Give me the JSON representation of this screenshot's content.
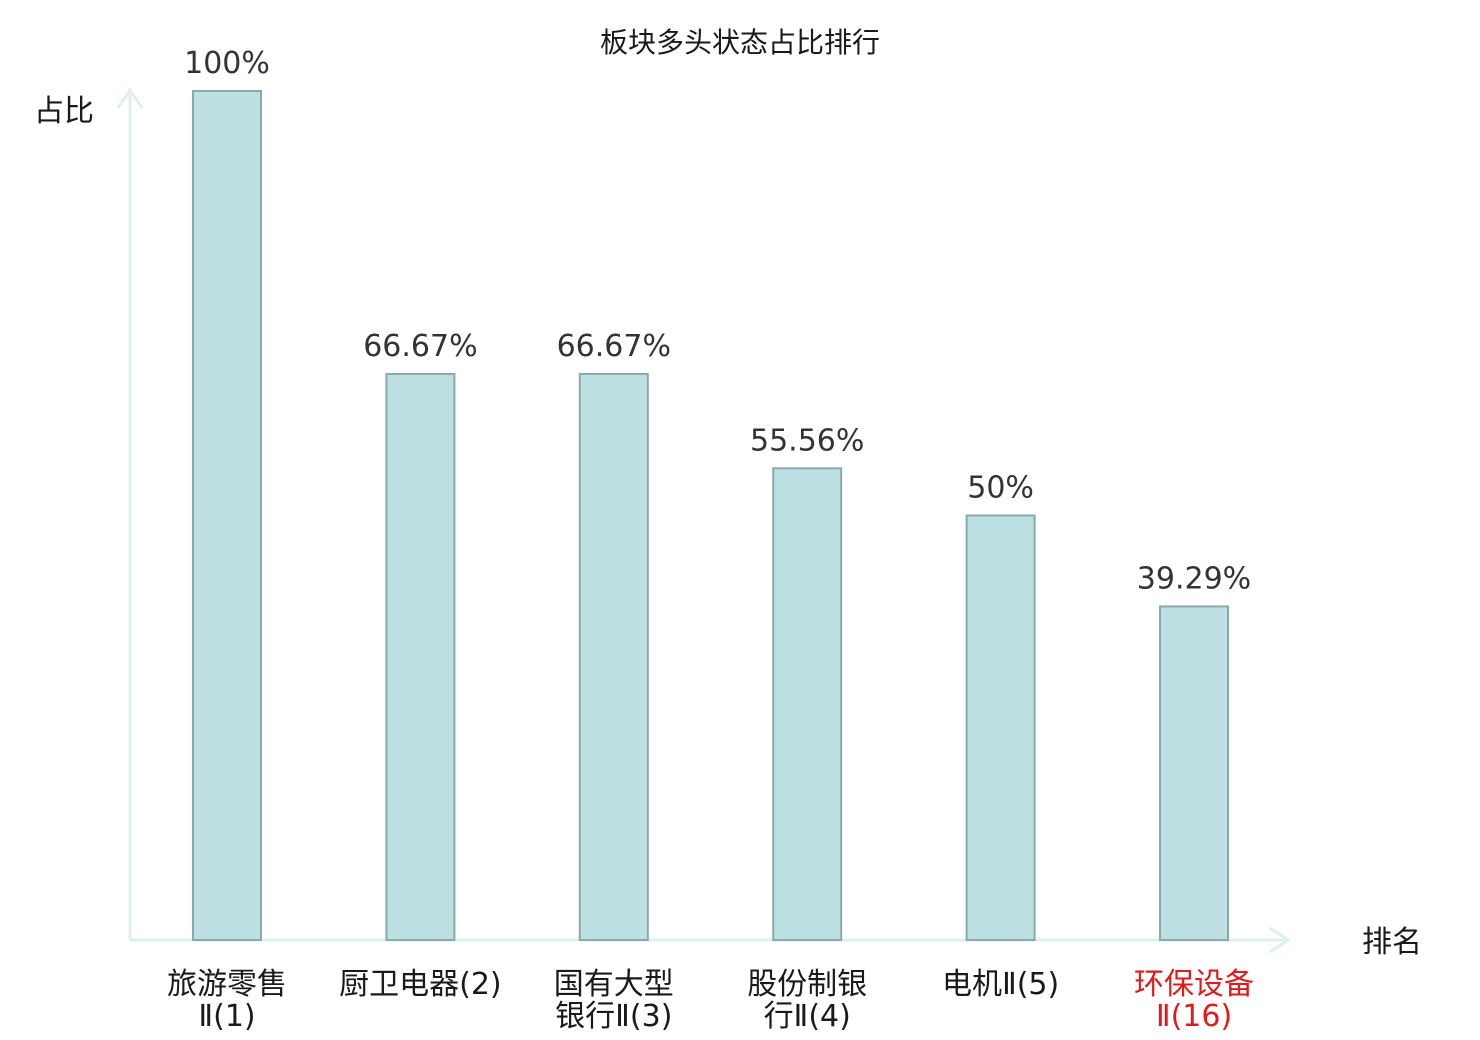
{
  "chart_data": {
    "type": "bar",
    "title": "板块多头状态占比排行",
    "ylabel": "占比",
    "xlabel": "排名",
    "ylim": [
      0,
      100
    ],
    "grid": false,
    "categories": [
      {
        "line1": "旅游零售",
        "line2": "Ⅱ(1)",
        "highlight": false
      },
      {
        "line1": "厨卫电器(2)",
        "line2": "",
        "highlight": false
      },
      {
        "line1": "国有大型",
        "line2": "银行Ⅱ(3)",
        "highlight": false
      },
      {
        "line1": "股份制银",
        "line2": "行Ⅱ(4)",
        "highlight": false
      },
      {
        "line1": "电机Ⅱ(5)",
        "line2": "",
        "highlight": false
      },
      {
        "line1": "环保设备",
        "line2": "Ⅱ(16)",
        "highlight": true
      }
    ],
    "values": [
      100,
      66.67,
      66.67,
      55.56,
      50,
      39.29
    ],
    "value_labels": [
      "100%",
      "66.67%",
      "66.67%",
      "55.56%",
      "50%",
      "39.29%"
    ],
    "colors": {
      "bar_fill": "#bde0e3",
      "bar_stroke": "#8aa9ac",
      "axis": "#ddf1ef",
      "highlight": "#e31a1c"
    }
  }
}
